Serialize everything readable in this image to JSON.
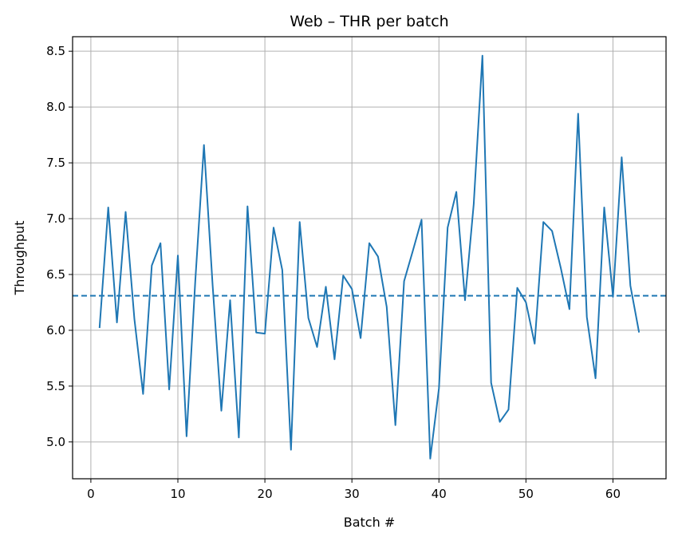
{
  "chart_data": {
    "type": "line",
    "title": "Web – THR per batch",
    "xlabel": "Batch #",
    "ylabel": "Throughput",
    "xlim": [
      -2.1,
      66.1
    ],
    "ylim": [
      4.67,
      8.63
    ],
    "xticks": [
      0,
      10,
      20,
      30,
      40,
      50,
      60
    ],
    "yticks": [
      5.0,
      5.5,
      6.0,
      6.5,
      7.0,
      7.5,
      8.0,
      8.5
    ],
    "grid": true,
    "line_color": "#1f77b4",
    "reference_line": {
      "value": 6.31,
      "style": "dashed"
    },
    "series": [
      {
        "x": [
          1,
          2,
          3,
          4,
          5,
          6,
          7,
          8,
          9,
          10,
          11,
          12,
          13,
          14,
          15,
          16,
          17,
          18,
          19,
          20,
          21,
          22,
          23,
          24,
          25,
          26,
          27,
          28,
          29,
          30,
          31,
          32,
          33,
          34,
          35,
          36,
          37,
          38,
          39,
          40,
          41,
          42,
          43,
          44,
          45,
          46,
          47,
          48,
          49,
          50,
          51,
          52,
          53,
          54,
          55,
          56,
          57,
          58,
          59,
          60,
          61,
          62,
          63
        ],
        "values": [
          6.02,
          7.1,
          6.07,
          7.06,
          6.1,
          5.43,
          6.58,
          6.78,
          5.47,
          6.67,
          5.05,
          6.44,
          7.66,
          6.4,
          5.28,
          6.27,
          5.04,
          7.11,
          5.98,
          5.97,
          6.92,
          6.54,
          4.93,
          6.97,
          6.11,
          5.85,
          6.39,
          5.74,
          6.49,
          6.37,
          5.93,
          6.78,
          6.66,
          6.21,
          5.15,
          6.44,
          6.71,
          6.99,
          4.85,
          5.48,
          6.92,
          7.24,
          6.27,
          7.13,
          8.46,
          5.53,
          5.18,
          5.29,
          6.38,
          6.25,
          5.88,
          6.97,
          6.89,
          6.56,
          6.19,
          7.94,
          6.12,
          5.57,
          7.1,
          6.3,
          7.55,
          6.4,
          5.98
        ]
      }
    ]
  }
}
